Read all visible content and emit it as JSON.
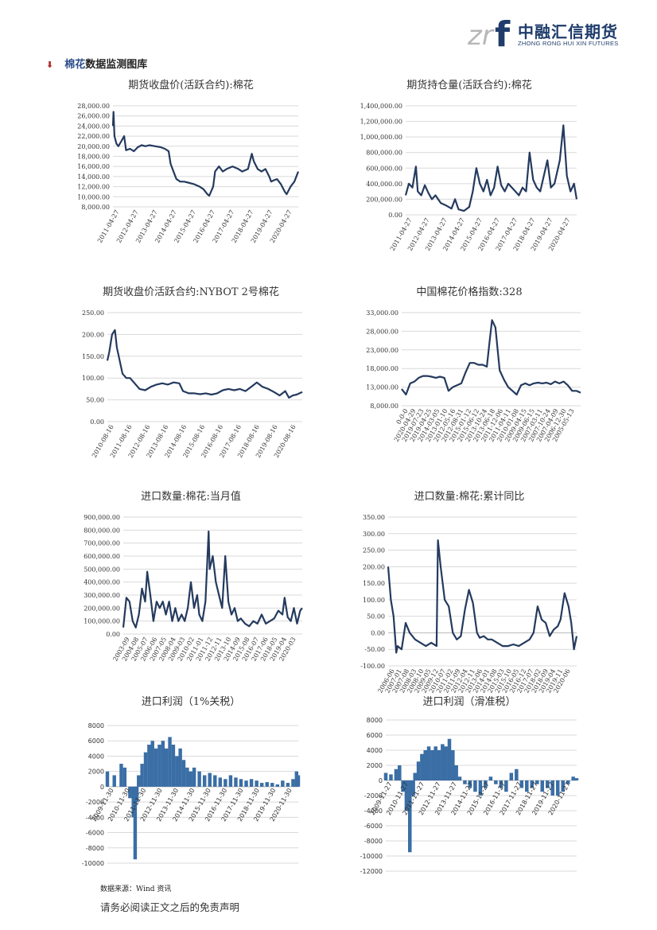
{
  "header": {
    "logo_text_cn": "中融汇信期货",
    "logo_text_en": "ZHONG RONG HUI XIN FUTURES",
    "colors": {
      "brand": "#1f3c6b",
      "logo_mark": "#b7b7b7"
    }
  },
  "section": {
    "bullet_icon": "down-arrow-bullet",
    "title_prefix": "棉花",
    "title_rest": "数据监测图库"
  },
  "footer": {
    "source": "数据来源：Wind 资讯",
    "disclaimer": "请务必阅读正文之后的免责声明"
  },
  "colors": {
    "series": "#243a5e",
    "bar": "#3a6ea5"
  },
  "chart_data": [
    {
      "id": "c1",
      "type": "line",
      "title": "期货收盘价(活跃合约):棉花",
      "ylim": [
        8000,
        28000
      ],
      "yticks": [
        "8,000.00",
        "10,000.00",
        "12,000.00",
        "14,000.00",
        "16,000.00",
        "18,000.00",
        "20,000.00",
        "22,000.00",
        "24,000.00",
        "26,000.00",
        "28,000.00"
      ],
      "xticks": [
        "2011-04-27",
        "2012-04-27",
        "2013-04-27",
        "2014-04-27",
        "2015-04-27",
        "2016-04-27",
        "2017-04-27",
        "2018-04-27",
        "2019-04-27",
        "2020-04-27"
      ],
      "x": [
        2011.32,
        2011.35,
        2011.4,
        2011.5,
        2011.6,
        2011.75,
        2011.9,
        2012.0,
        2012.2,
        2012.4,
        2012.6,
        2012.8,
        2013.0,
        2013.2,
        2013.5,
        2013.8,
        2014.0,
        2014.2,
        2014.3,
        2014.5,
        2014.6,
        2014.8,
        2015.0,
        2015.2,
        2015.5,
        2015.8,
        2016.0,
        2016.2,
        2016.3,
        2016.5,
        2016.6,
        2016.8,
        2017.0,
        2017.2,
        2017.5,
        2017.8,
        2018.0,
        2018.3,
        2018.5,
        2018.6,
        2018.8,
        2019.0,
        2019.2,
        2019.4,
        2019.5,
        2019.6,
        2019.8,
        2020.0,
        2020.2,
        2020.3,
        2020.5,
        2020.7,
        2020.9
      ],
      "y": [
        24000,
        26800,
        22000,
        20500,
        20000,
        21000,
        22000,
        19200,
        19500,
        19000,
        19800,
        20200,
        20000,
        20200,
        20000,
        19800,
        19500,
        19000,
        16500,
        14500,
        13500,
        13000,
        13000,
        12800,
        12500,
        12000,
        11500,
        10500,
        10200,
        12000,
        15000,
        16000,
        15000,
        15500,
        16000,
        15500,
        15000,
        15500,
        18500,
        17000,
        15500,
        15000,
        15500,
        14000,
        13000,
        13200,
        13500,
        12500,
        11000,
        10500,
        12000,
        13000,
        15000
      ]
    },
    {
      "id": "c2",
      "type": "line",
      "title": "期货持仓量(活跃合约):棉花",
      "ylim": [
        0,
        1400000
      ],
      "yticks": [
        "0.00",
        "200,000.00",
        "400,000.00",
        "600,000.00",
        "800,000.00",
        "1,000,000.00",
        "1,200,000.00",
        "1,400,000.00"
      ],
      "xticks": [
        "2011-04-27",
        "2012-04-27",
        "2013-04-27",
        "2014-04-27",
        "2015-04-27",
        "2016-04-27",
        "2017-04-27",
        "2018-04-27",
        "2019-04-27",
        "2020-04-27"
      ],
      "x": [
        2011.32,
        2011.5,
        2011.7,
        2011.9,
        2012.0,
        2012.2,
        2012.4,
        2012.6,
        2012.8,
        2013.0,
        2013.3,
        2013.6,
        2013.9,
        2014.1,
        2014.3,
        2014.6,
        2014.9,
        2015.1,
        2015.3,
        2015.5,
        2015.7,
        2015.9,
        2016.1,
        2016.3,
        2016.5,
        2016.7,
        2016.9,
        2017.1,
        2017.3,
        2017.5,
        2017.7,
        2017.9,
        2018.1,
        2018.3,
        2018.5,
        2018.7,
        2018.9,
        2019.1,
        2019.3,
        2019.5,
        2019.7,
        2019.9,
        2020.0,
        2020.2,
        2020.4,
        2020.6,
        2020.8,
        2020.95
      ],
      "y": [
        250000,
        400000,
        350000,
        620000,
        300000,
        250000,
        380000,
        280000,
        200000,
        250000,
        150000,
        120000,
        80000,
        200000,
        70000,
        50000,
        100000,
        300000,
        600000,
        400000,
        300000,
        450000,
        250000,
        350000,
        620000,
        380000,
        300000,
        400000,
        350000,
        300000,
        250000,
        350000,
        300000,
        800000,
        450000,
        350000,
        300000,
        500000,
        700000,
        350000,
        400000,
        600000,
        700000,
        1150000,
        500000,
        300000,
        400000,
        200000
      ]
    },
    {
      "id": "c3",
      "type": "line",
      "title": "期货收盘价活跃合约:NYBOT 2号棉花",
      "ylim": [
        0,
        250
      ],
      "yticks": [
        "0.00",
        "50.00",
        "100.00",
        "150.00",
        "200.00",
        "250.00"
      ],
      "xticks": [
        "2010-08-16",
        "2011-08-16",
        "2012-08-16",
        "2013-08-16",
        "2014-08-16",
        "2015-08-16",
        "2016-08-16",
        "2017-08-16",
        "2018-08-16",
        "2019-08-16",
        "2020-08-16"
      ],
      "x": [
        2010.6,
        2010.7,
        2010.85,
        2011.0,
        2011.1,
        2011.2,
        2011.4,
        2011.6,
        2011.8,
        2012.0,
        2012.3,
        2012.6,
        2012.9,
        2013.2,
        2013.5,
        2013.8,
        2014.1,
        2014.4,
        2014.6,
        2014.9,
        2015.2,
        2015.5,
        2015.8,
        2016.1,
        2016.4,
        2016.7,
        2017.0,
        2017.3,
        2017.6,
        2017.9,
        2018.2,
        2018.5,
        2018.8,
        2019.1,
        2019.4,
        2019.7,
        2020.0,
        2020.2,
        2020.4,
        2020.6,
        2020.9
      ],
      "y": [
        140,
        160,
        200,
        210,
        170,
        150,
        110,
        100,
        100,
        90,
        75,
        72,
        80,
        85,
        88,
        85,
        90,
        88,
        70,
        65,
        65,
        63,
        65,
        62,
        65,
        72,
        75,
        72,
        75,
        70,
        80,
        90,
        80,
        75,
        68,
        60,
        70,
        55,
        60,
        62,
        68
      ]
    },
    {
      "id": "c4",
      "type": "line",
      "title": "中国棉花价格指数:328",
      "ylim": [
        8000,
        33000
      ],
      "yticks": [
        "8,000.00",
        "13,000.00",
        "18,000.00",
        "23,000.00",
        "28,000.00",
        "33,000.00"
      ],
      "xticks": [
        "0-0-0",
        "2020-04-29",
        "2019-07-23",
        "2019-04-25",
        "2014-03-05",
        "2013-01-10",
        "2012-05-16",
        "2012-08-31",
        "2015-01-12",
        "2015-06-12",
        "2013-10-24",
        "2013-06-18",
        "2011-12-06",
        "2011-04-11",
        "2010-01-08",
        "2009-04-15",
        "2009-06-15",
        "2007-03-11",
        "2007-10-24",
        "2007-04-09",
        "2006-12-30",
        "2005-05-13"
      ],
      "x": [
        0,
        0.5,
        1,
        1.5,
        2,
        2.5,
        3,
        3.5,
        4,
        4.5,
        5,
        5.5,
        6,
        6.5,
        7,
        7.5,
        8,
        8.5,
        9,
        9.5,
        10,
        10.3,
        10.6,
        11,
        11.5,
        12,
        12.5,
        13,
        13.5,
        14,
        14.5,
        15,
        15.5,
        16,
        16.5,
        17,
        17.5,
        18,
        18.5,
        19,
        19.5,
        20,
        20.5,
        21
      ],
      "y": [
        12500,
        11000,
        14000,
        14500,
        15500,
        16000,
        16000,
        15800,
        15500,
        15800,
        15500,
        12000,
        13000,
        13500,
        14000,
        17000,
        19500,
        19500,
        19000,
        19000,
        18500,
        25000,
        31000,
        29000,
        17500,
        15000,
        13000,
        12000,
        11000,
        13500,
        14000,
        13500,
        14000,
        14200,
        14000,
        14200,
        13800,
        14500,
        14000,
        14500,
        13500,
        12000,
        12000,
        11500
      ]
    },
    {
      "id": "c5",
      "type": "line",
      "title": "进口数量:棉花:当月值",
      "ylim": [
        0,
        900000
      ],
      "yticks": [
        "0.00",
        "100,000.00",
        "200,000.00",
        "300,000.00",
        "400,000.00",
        "500,000.00",
        "600,000.00",
        "700,000.00",
        "800,000.00",
        "900,000.00"
      ],
      "xticks": [
        "2003-09",
        "2004-08",
        "2005-07",
        "2006-06",
        "2007-05",
        "2008-04",
        "2009-03",
        "2010-02",
        "2011-01",
        "2011-12",
        "2012-11",
        "2013-10",
        "2014-09",
        "2015-08",
        "2016-07",
        "2017-06",
        "2018-05",
        "2019-04",
        "2020-03"
      ],
      "x": [
        2003.7,
        2004.0,
        2004.3,
        2004.6,
        2004.9,
        2005.2,
        2005.5,
        2005.8,
        2006.0,
        2006.3,
        2006.6,
        2006.9,
        2007.2,
        2007.5,
        2007.8,
        2008.1,
        2008.4,
        2008.7,
        2009.0,
        2009.3,
        2009.6,
        2009.9,
        2010.2,
        2010.5,
        2010.8,
        2011.0,
        2011.3,
        2011.6,
        2011.9,
        2012.0,
        2012.3,
        2012.6,
        2012.9,
        2013.2,
        2013.5,
        2013.8,
        2014.1,
        2014.4,
        2014.7,
        2015.0,
        2015.4,
        2015.8,
        2016.2,
        2016.6,
        2017.0,
        2017.4,
        2017.8,
        2018.2,
        2018.6,
        2019.0,
        2019.2,
        2019.5,
        2019.8,
        2020.1,
        2020.4,
        2020.7,
        2020.9
      ],
      "y": [
        50000,
        280000,
        250000,
        100000,
        50000,
        150000,
        350000,
        250000,
        480000,
        300000,
        100000,
        250000,
        200000,
        250000,
        150000,
        250000,
        100000,
        200000,
        100000,
        150000,
        100000,
        200000,
        400000,
        200000,
        300000,
        150000,
        100000,
        250000,
        790000,
        500000,
        600000,
        400000,
        300000,
        200000,
        600000,
        250000,
        150000,
        200000,
        100000,
        120000,
        80000,
        60000,
        100000,
        80000,
        150000,
        80000,
        100000,
        120000,
        180000,
        150000,
        280000,
        130000,
        100000,
        200000,
        80000,
        180000,
        200000
      ]
    },
    {
      "id": "c6",
      "type": "line",
      "title": "进口数量:棉花:累计同比",
      "ylim": [
        -100,
        350
      ],
      "yticks": [
        "-100.00",
        "-50.00",
        "0.00",
        "50.00",
        "100.00",
        "150.00",
        "200.00",
        "250.00",
        "300.00",
        "350.00"
      ],
      "xticks": [
        "2006-06",
        "2007-01",
        "2007-08",
        "2008-03",
        "2008-10",
        "2009-05",
        "2009-12",
        "2010-07",
        "2011-02",
        "2011-09",
        "2012-04",
        "2012-11",
        "2013-06",
        "2014-01",
        "2014-08",
        "2015-03",
        "2015-10",
        "2016-05",
        "2016-12",
        "2017-07",
        "2018-02",
        "2018-09",
        "2019-04",
        "2019-11",
        "2020-06"
      ],
      "x": [
        2006.4,
        2006.6,
        2006.8,
        2007.0,
        2007.1,
        2007.4,
        2007.7,
        2008.0,
        2008.4,
        2008.8,
        2009.2,
        2009.6,
        2010.0,
        2010.1,
        2010.3,
        2010.6,
        2010.9,
        2011.2,
        2011.5,
        2011.8,
        2012.1,
        2012.4,
        2012.7,
        2013.0,
        2013.2,
        2013.5,
        2013.8,
        2014.1,
        2014.5,
        2014.9,
        2015.3,
        2015.7,
        2016.1,
        2016.5,
        2016.9,
        2017.2,
        2017.5,
        2017.8,
        2018.1,
        2018.4,
        2018.7,
        2019.0,
        2019.2,
        2019.5,
        2019.8,
        2020.0,
        2020.2,
        2020.4
      ],
      "y": [
        200,
        100,
        50,
        -60,
        -40,
        -50,
        30,
        0,
        -20,
        -30,
        -40,
        -30,
        -40,
        280,
        200,
        100,
        80,
        0,
        -20,
        -10,
        70,
        130,
        90,
        0,
        -15,
        -10,
        -20,
        -20,
        -30,
        -40,
        -40,
        -35,
        -40,
        -30,
        -20,
        0,
        80,
        40,
        30,
        -10,
        10,
        20,
        40,
        120,
        80,
        30,
        -50,
        -10
      ]
    },
    {
      "id": "c7",
      "type": "bar",
      "title": "进口利润（1%关税）",
      "ylim": [
        -10000,
        8000
      ],
      "yticks": [
        "-10000",
        "-8000",
        "-6000",
        "-4000",
        "-2000",
        "0",
        "2000",
        "4000",
        "6000",
        "8000"
      ],
      "xticks": [
        "2009-11-30",
        "2010-11-30",
        "2011-11-30",
        "2012-11-30",
        "2013-11-30",
        "2014-11-30",
        "2015-11-30",
        "2016-11-30",
        "2017-11-30",
        "2018-11-30",
        "2019-11-30",
        "2020-11-30"
      ],
      "x": [
        2010.0,
        2010.4,
        2010.8,
        2011.0,
        2011.3,
        2011.5,
        2011.6,
        2011.7,
        2011.8,
        2012.0,
        2012.2,
        2012.4,
        2012.6,
        2012.8,
        2013.0,
        2013.2,
        2013.4,
        2013.6,
        2013.8,
        2014.0,
        2014.2,
        2014.4,
        2014.6,
        2014.8,
        2015.0,
        2015.3,
        2015.6,
        2015.9,
        2016.2,
        2016.5,
        2016.8,
        2017.1,
        2017.4,
        2017.7,
        2018.0,
        2018.3,
        2018.6,
        2018.9,
        2019.2,
        2019.5,
        2019.8,
        2020.1,
        2020.4,
        2020.7,
        2020.9,
        2021.0
      ],
      "y": [
        2000,
        1500,
        3000,
        2500,
        -1500,
        -4000,
        -9500,
        -2000,
        1500,
        3000,
        4500,
        5500,
        6000,
        5000,
        5500,
        6000,
        5000,
        6500,
        5500,
        4000,
        5000,
        3500,
        2500,
        2000,
        2500,
        2000,
        1500,
        1800,
        1500,
        1200,
        1000,
        1500,
        1200,
        1000,
        800,
        1000,
        800,
        500,
        600,
        500,
        300,
        800,
        500,
        1000,
        2000,
        1500
      ]
    },
    {
      "id": "c8",
      "type": "bar",
      "title": "进口利润（滑准税）",
      "ylim": [
        -12000,
        8000
      ],
      "yticks": [
        "-12000",
        "-10000",
        "-8000",
        "-6000",
        "-4000",
        "-2000",
        "0",
        "2000",
        "4000",
        "6000",
        "8000"
      ],
      "xticks": [
        "2009-11-27",
        "2010-11-27",
        "2011-11-27",
        "2012-11-27",
        "2013-11-27",
        "2014-11-27",
        "2015-11-27",
        "2016-11-27",
        "2017-11-27",
        "2018-11-27",
        "2019-11-27",
        "2020-11-27"
      ],
      "x": [
        2009.9,
        2010.2,
        2010.5,
        2010.7,
        2010.9,
        2011.1,
        2011.3,
        2011.5,
        2011.6,
        2011.8,
        2012.0,
        2012.2,
        2012.4,
        2012.6,
        2012.8,
        2013.0,
        2013.2,
        2013.4,
        2013.6,
        2013.8,
        2014.0,
        2014.2,
        2014.5,
        2014.8,
        2015.1,
        2015.4,
        2015.7,
        2016.0,
        2016.3,
        2016.6,
        2016.9,
        2017.2,
        2017.5,
        2017.8,
        2018.1,
        2018.4,
        2018.7,
        2019.0,
        2019.3,
        2019.6,
        2019.9,
        2020.2,
        2020.5,
        2020.8,
        2021.0
      ],
      "y": [
        1000,
        800,
        1500,
        2000,
        -1500,
        -4000,
        -9500,
        -2000,
        1000,
        2500,
        3500,
        4000,
        4500,
        4000,
        4500,
        4000,
        4800,
        4500,
        5500,
        4000,
        2000,
        500,
        -500,
        -1000,
        -1500,
        -2000,
        -1000,
        500,
        -500,
        -1000,
        -1500,
        1000,
        1500,
        -1000,
        -1500,
        -1000,
        -500,
        -1500,
        -1000,
        -2000,
        -2000,
        -1500,
        -500,
        500,
        300
      ]
    }
  ]
}
